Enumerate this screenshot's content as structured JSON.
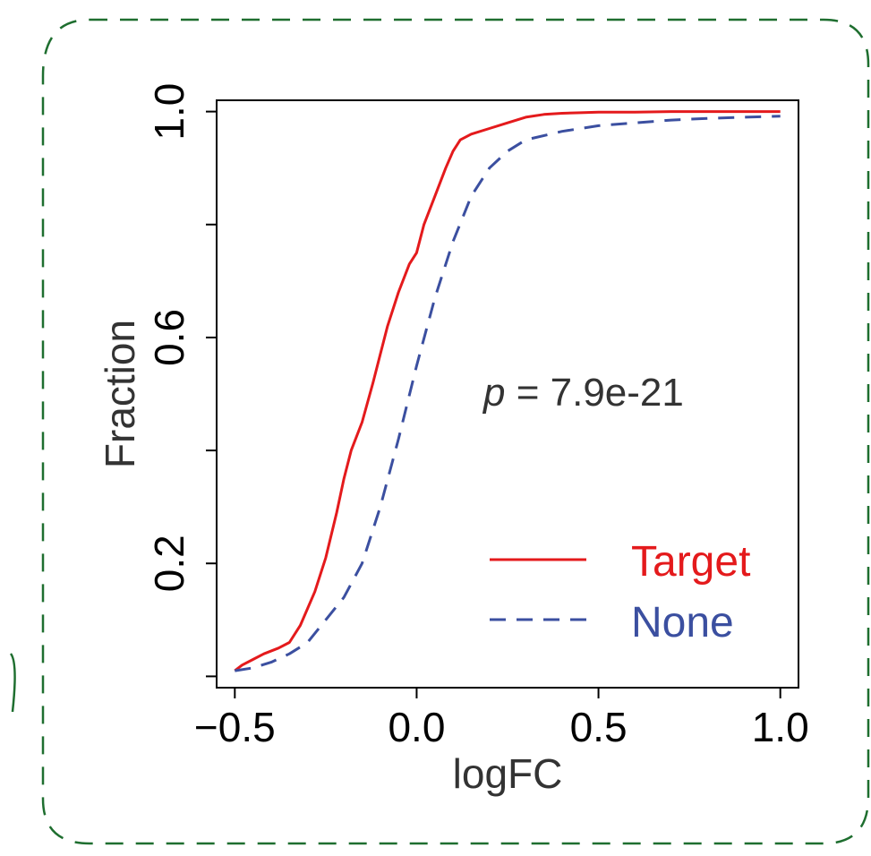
{
  "chart_data": {
    "type": "line",
    "title": "",
    "xlabel": "logFC",
    "ylabel": "Fraction",
    "xlim": [
      -0.55,
      1.05
    ],
    "ylim": [
      -0.02,
      1.02
    ],
    "xticks": [
      -0.5,
      0.0,
      0.5,
      1.0
    ],
    "xtick_labels": [
      "−0.5",
      "0.0",
      "0.5",
      "1.0"
    ],
    "yticks": [
      0.0,
      0.2,
      0.4,
      0.6,
      0.8,
      1.0
    ],
    "ytick_labels": [
      "",
      "0.2",
      "",
      "0.6",
      "",
      "1.0"
    ],
    "grid": false,
    "legend_position": "bottom-right",
    "annotation": {
      "italic": "p",
      "rest": " = 7.9e-21"
    },
    "series": [
      {
        "name": "Target",
        "color": "#e41a1c",
        "style": "solid",
        "x": [
          -0.5,
          -0.48,
          -0.45,
          -0.42,
          -0.38,
          -0.35,
          -0.32,
          -0.28,
          -0.25,
          -0.22,
          -0.2,
          -0.18,
          -0.15,
          -0.12,
          -0.1,
          -0.08,
          -0.05,
          -0.02,
          0.0,
          0.02,
          0.05,
          0.08,
          0.1,
          0.12,
          0.15,
          0.2,
          0.25,
          0.3,
          0.35,
          0.4,
          0.45,
          0.5,
          0.6,
          0.7,
          0.8,
          0.9,
          1.0
        ],
        "y": [
          0.01,
          0.02,
          0.03,
          0.04,
          0.05,
          0.06,
          0.09,
          0.15,
          0.21,
          0.29,
          0.35,
          0.4,
          0.45,
          0.52,
          0.57,
          0.62,
          0.68,
          0.73,
          0.75,
          0.8,
          0.85,
          0.9,
          0.93,
          0.95,
          0.96,
          0.97,
          0.98,
          0.99,
          0.995,
          0.997,
          0.998,
          0.999,
          0.999,
          1.0,
          1.0,
          1.0,
          1.0
        ]
      },
      {
        "name": "None",
        "color": "#3b4fa0",
        "style": "dashed",
        "x": [
          -0.5,
          -0.45,
          -0.4,
          -0.35,
          -0.3,
          -0.25,
          -0.2,
          -0.15,
          -0.1,
          -0.05,
          0.0,
          0.05,
          0.1,
          0.15,
          0.2,
          0.25,
          0.3,
          0.4,
          0.5,
          0.6,
          0.7,
          0.8,
          0.9,
          1.0
        ],
        "y": [
          0.01,
          0.015,
          0.025,
          0.04,
          0.06,
          0.1,
          0.14,
          0.2,
          0.3,
          0.42,
          0.55,
          0.67,
          0.77,
          0.85,
          0.9,
          0.93,
          0.95,
          0.965,
          0.975,
          0.98,
          0.985,
          0.988,
          0.99,
          0.992
        ]
      }
    ]
  }
}
